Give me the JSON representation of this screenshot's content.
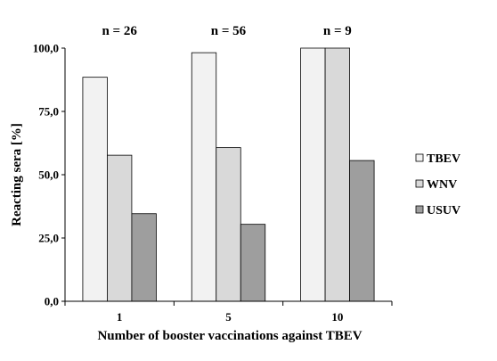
{
  "chart_data": {
    "type": "bar",
    "categories": [
      "1",
      "5",
      "10"
    ],
    "series": [
      {
        "name": "TBEV",
        "values": [
          88.5,
          98.2,
          100.0
        ],
        "color": "#f2f2f2"
      },
      {
        "name": "WNV",
        "values": [
          57.7,
          60.7,
          100.0
        ],
        "color": "#d9d9d9"
      },
      {
        "name": "USUV",
        "values": [
          34.6,
          30.4,
          55.6
        ],
        "color": "#9e9e9e"
      }
    ],
    "group_labels": [
      "n = 26",
      "n = 56",
      "n = 9"
    ],
    "xlabel": "Number of booster vaccinations against TBEV",
    "ylabel": "Reacting sera [%]",
    "ylim": [
      0,
      100
    ],
    "yticks": [
      0,
      25,
      50,
      75,
      100
    ],
    "ytick_labels": [
      "0,0",
      "25,0",
      "50,0",
      "75,0",
      "100,0"
    ],
    "grid": false,
    "legend_position": "right"
  }
}
